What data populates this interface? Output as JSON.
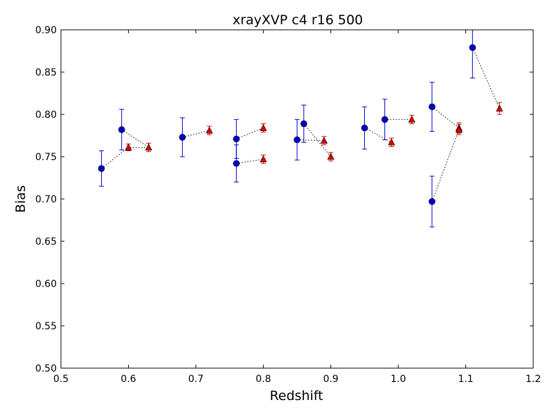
{
  "chart_data": {
    "type": "scatter",
    "title": "xrayXVP c4 r16 500",
    "xlabel": "Redshift",
    "ylabel": "Bias",
    "xlim": [
      0.5,
      1.2
    ],
    "ylim": [
      0.5,
      0.9
    ],
    "xticks": [
      0.5,
      0.6,
      0.7,
      0.8,
      0.9,
      1.0,
      1.1,
      1.2
    ],
    "xtick_labels": [
      "0.5",
      "0.6",
      "0.7",
      "0.8",
      "0.9",
      "1.0",
      "1.1",
      "1.2"
    ],
    "yticks": [
      0.5,
      0.55,
      0.6,
      0.65,
      0.7,
      0.75,
      0.8,
      0.85,
      0.9
    ],
    "ytick_labels": [
      "0.50",
      "0.55",
      "0.60",
      "0.65",
      "0.70",
      "0.75",
      "0.80",
      "0.85",
      "0.90"
    ],
    "grid": false,
    "series": [
      {
        "marker": "circle",
        "color": "#0000cc",
        "points": [
          {
            "x": 0.56,
            "y": 0.736,
            "err": 0.021
          },
          {
            "x": 0.59,
            "y": 0.782,
            "err": 0.024
          },
          {
            "x": 0.68,
            "y": 0.773,
            "err": 0.023
          },
          {
            "x": 0.76,
            "y": 0.771,
            "err": 0.023
          },
          {
            "x": 0.76,
            "y": 0.742,
            "err": 0.022
          },
          {
            "x": 0.85,
            "y": 0.77,
            "err": 0.024
          },
          {
            "x": 0.86,
            "y": 0.789,
            "err": 0.022
          },
          {
            "x": 0.95,
            "y": 0.784,
            "err": 0.025
          },
          {
            "x": 0.98,
            "y": 0.794,
            "err": 0.024
          },
          {
            "x": 1.05,
            "y": 0.809,
            "err": 0.029
          },
          {
            "x": 1.05,
            "y": 0.697,
            "err": 0.03
          },
          {
            "x": 1.11,
            "y": 0.879,
            "err": 0.036
          }
        ]
      },
      {
        "marker": "triangle",
        "color": "#dd0000",
        "points": [
          {
            "x": 0.6,
            "y": 0.761,
            "err": 0.004
          },
          {
            "x": 0.63,
            "y": 0.761,
            "err": 0.005
          },
          {
            "x": 0.72,
            "y": 0.781,
            "err": 0.005
          },
          {
            "x": 0.8,
            "y": 0.784,
            "err": 0.005
          },
          {
            "x": 0.8,
            "y": 0.747,
            "err": 0.005
          },
          {
            "x": 0.89,
            "y": 0.769,
            "err": 0.005
          },
          {
            "x": 0.9,
            "y": 0.75,
            "err": 0.005
          },
          {
            "x": 0.99,
            "y": 0.767,
            "err": 0.005
          },
          {
            "x": 1.02,
            "y": 0.794,
            "err": 0.005
          },
          {
            "x": 1.09,
            "y": 0.784,
            "err": 0.006
          },
          {
            "x": 1.09,
            "y": 0.782,
            "err": 0.006
          },
          {
            "x": 1.15,
            "y": 0.807,
            "err": 0.007
          }
        ]
      }
    ],
    "connectors": {
      "style": "dotted",
      "color": "#000000",
      "lines": [
        [
          [
            0.56,
            0.736
          ],
          [
            0.6,
            0.761
          ],
          [
            0.63,
            0.761
          ]
        ],
        [
          [
            0.59,
            0.782
          ],
          [
            0.63,
            0.761
          ]
        ],
        [
          [
            0.68,
            0.773
          ],
          [
            0.72,
            0.781
          ]
        ],
        [
          [
            0.76,
            0.771
          ],
          [
            0.8,
            0.784
          ]
        ],
        [
          [
            0.76,
            0.742
          ],
          [
            0.8,
            0.747
          ]
        ],
        [
          [
            0.85,
            0.77
          ],
          [
            0.89,
            0.769
          ]
        ],
        [
          [
            0.86,
            0.789
          ],
          [
            0.9,
            0.75
          ]
        ],
        [
          [
            0.95,
            0.784
          ],
          [
            0.99,
            0.767
          ]
        ],
        [
          [
            0.98,
            0.794
          ],
          [
            1.02,
            0.794
          ]
        ],
        [
          [
            1.05,
            0.809
          ],
          [
            1.09,
            0.784
          ]
        ],
        [
          [
            1.05,
            0.697
          ],
          [
            1.09,
            0.782
          ]
        ],
        [
          [
            1.11,
            0.879
          ],
          [
            1.15,
            0.807
          ]
        ]
      ]
    }
  }
}
